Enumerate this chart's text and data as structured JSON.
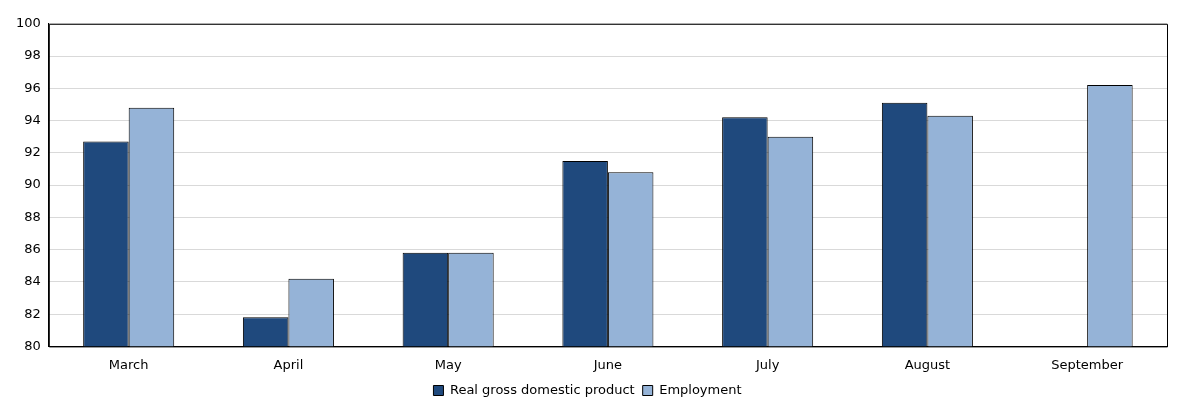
{
  "chart_data": {
    "type": "bar",
    "categories": [
      "March",
      "April",
      "May",
      "June",
      "July",
      "August",
      "September"
    ],
    "series": [
      {
        "name": "Real gross domestic product",
        "color": "#1f497d",
        "values": [
          92.7,
          81.8,
          85.8,
          91.5,
          94.2,
          95.1,
          null
        ]
      },
      {
        "name": "Employment",
        "color": "#95b3d7",
        "values": [
          94.8,
          84.2,
          85.8,
          90.8,
          93.0,
          94.3,
          96.2
        ]
      }
    ],
    "ylim": [
      80,
      100
    ],
    "yticks": [
      80,
      82,
      84,
      86,
      88,
      90,
      92,
      94,
      96,
      98,
      100
    ],
    "grid": "y",
    "legend": "bottom"
  }
}
